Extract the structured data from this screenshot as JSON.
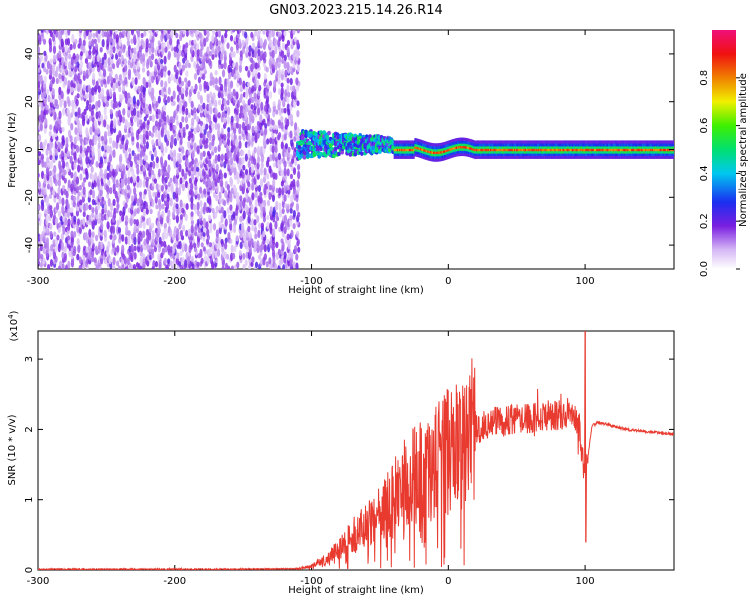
{
  "title": "GN03.2023.215.14.26.R14",
  "chart_data": [
    {
      "type": "heatmap",
      "xlabel": "Height of straight line (km)",
      "ylabel": "Frequency (Hz)",
      "xlim": [
        -300,
        165
      ],
      "ylim": [
        -50,
        50
      ],
      "xticks": [
        -300,
        -200,
        -100,
        0,
        100
      ],
      "yticks": [
        -40,
        -20,
        0,
        20,
        40
      ],
      "colorbar": {
        "label": "Normalized spectral amplitude",
        "range": [
          0,
          1
        ],
        "ticks": [
          "0.0",
          "0.2",
          "0.4",
          "0.6",
          "0.8"
        ],
        "colormap": "rainbow"
      },
      "regions": [
        {
          "name": "noise",
          "x_range": [
            -300,
            -110
          ],
          "freq_range": [
            -50,
            50
          ],
          "amplitude_max": 0.15
        },
        {
          "name": "signal-onset",
          "x_range": [
            -110,
            -40
          ],
          "freq_center": 2,
          "freq_halfwidth": 6,
          "amplitude_max": 0.4
        },
        {
          "name": "carrier",
          "x_range": [
            -40,
            165
          ],
          "freq_center": 0,
          "freq_halfwidth": 3,
          "amplitude_max": 1.0
        }
      ]
    },
    {
      "type": "line",
      "xlabel": "Height of straight line (km)",
      "ylabel": "SNR (10 * v/v)",
      "y_multiplier_label": "(x10",
      "y_multiplier_exp": "4",
      "xlim": [
        -300,
        165
      ],
      "ylim": [
        0,
        3.4
      ],
      "xticks": [
        -300,
        -200,
        -100,
        0,
        100
      ],
      "yticks": [
        0,
        1,
        2,
        3
      ],
      "color": "#e83a2f",
      "x": [
        -300,
        -250,
        -200,
        -150,
        -110,
        -100,
        -90,
        -80,
        -70,
        -60,
        -50,
        -40,
        -30,
        -20,
        -10,
        0,
        10,
        20,
        30,
        40,
        50,
        60,
        70,
        80,
        90,
        95,
        100,
        105,
        110,
        120,
        130,
        140,
        150,
        165
      ],
      "y": [
        0.01,
        0.01,
        0.01,
        0.01,
        0.02,
        0.05,
        0.15,
        0.3,
        0.5,
        0.6,
        0.8,
        1.0,
        1.3,
        1.4,
        1.5,
        1.7,
        1.8,
        2.0,
        2.1,
        2.1,
        2.15,
        2.15,
        2.2,
        2.2,
        2.25,
        2.1,
        1.3,
        2.05,
        2.1,
        2.05,
        2.0,
        1.98,
        1.96,
        1.93
      ]
    }
  ]
}
